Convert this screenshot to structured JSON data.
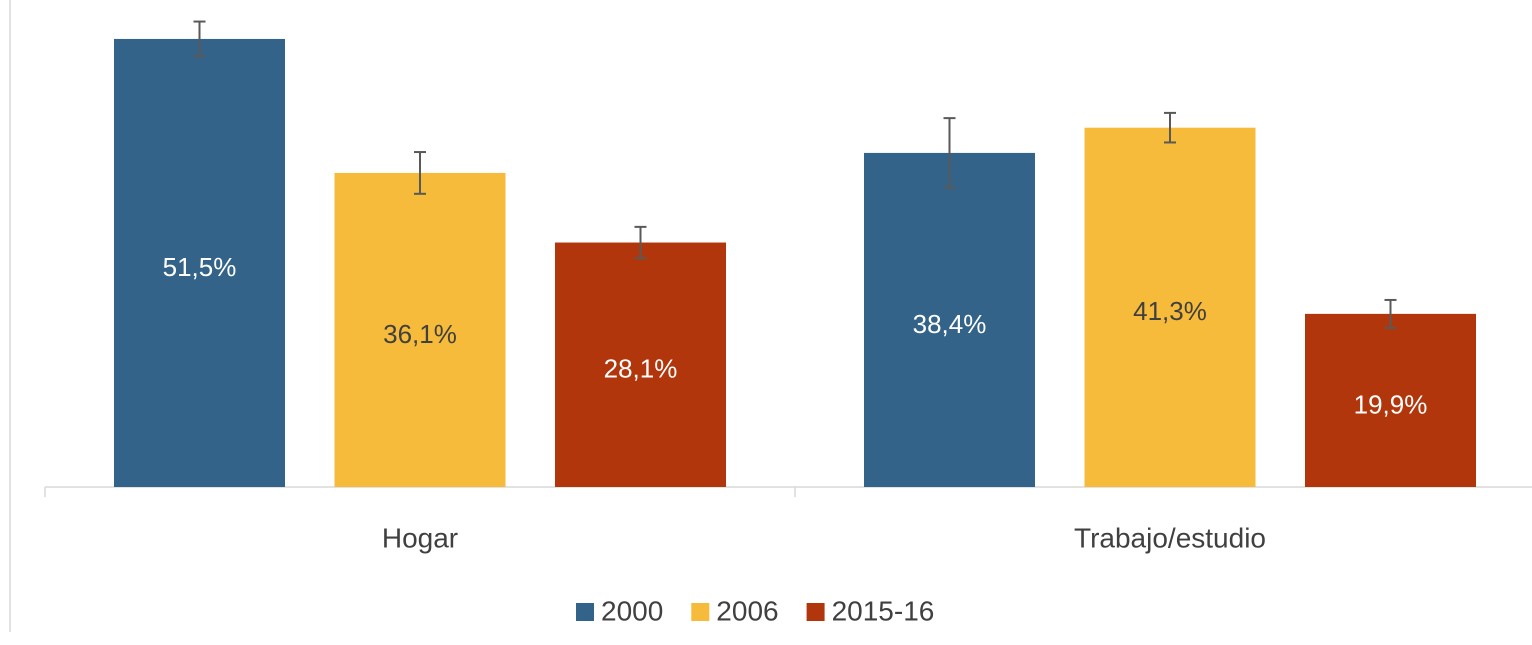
{
  "chart_data": {
    "type": "bar",
    "categories": [
      "Hogar",
      "Trabajo/estudio"
    ],
    "series": [
      {
        "name": "2000",
        "color": "#336388",
        "values": [
          51.5,
          38.4
        ],
        "value_labels": [
          "51,5%",
          "38,4%"
        ],
        "errors": [
          2.0,
          4.0
        ]
      },
      {
        "name": "2006",
        "color": "#f6bb3a",
        "values": [
          36.1,
          41.3
        ],
        "value_labels": [
          "36,1%",
          "41,3%"
        ],
        "errors": [
          2.4,
          1.7
        ]
      },
      {
        "name": "2015-16",
        "color": "#b1360b",
        "values": [
          28.1,
          19.9
        ],
        "value_labels": [
          "28,1%",
          "19,9%"
        ],
        "errors": [
          1.8,
          1.6
        ]
      }
    ],
    "ylim": [
      0,
      55
    ],
    "legend": "bottom"
  }
}
